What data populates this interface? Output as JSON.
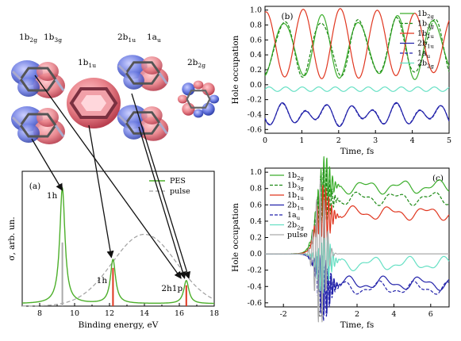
{
  "orbitals": {
    "labels": [
      {
        "main": "1b",
        "sub": "2g"
      },
      {
        "main": "1b",
        "sub": "3g"
      },
      {
        "main": "1b",
        "sub": "1u"
      },
      {
        "main": "2b",
        "sub": "1u"
      },
      {
        "main": "1a",
        "sub": "u"
      },
      {
        "main": "2b",
        "sub": "2g"
      }
    ]
  },
  "colors": {
    "green": "#3cae2c",
    "darkgreen": "#1e8a17",
    "red": "#e0361f",
    "blue": "#2222aa",
    "cyan": "#66e0c4",
    "gray": "#aaaaaa",
    "pes": "#4caf2a",
    "pulse": "#a0a0a0"
  },
  "panel_a": {
    "tag": "(a)",
    "xlabel": "Binding energy, eV",
    "ylabel": "σ, arb. un.",
    "xticks": [
      "8",
      "10",
      "12",
      "14",
      "16",
      "18"
    ],
    "legend": [
      {
        "name": "PES"
      },
      {
        "name": "pulse"
      }
    ],
    "peak_labels": [
      "1h",
      "1h",
      "2h1p"
    ]
  },
  "panel_b": {
    "tag": "(b)",
    "xlabel": "Time, fs",
    "ylabel": "Hole occupation",
    "xticks": [
      "0",
      "1",
      "2",
      "3",
      "4",
      "5"
    ],
    "yticks": [
      "1.0",
      "0.8",
      "0.6",
      "0.4",
      "0.2",
      "0.0",
      "-0.2",
      "-0.4",
      "-0.6"
    ],
    "legend": [
      {
        "main": "1b",
        "sub": "2g"
      },
      {
        "main": "1b",
        "sub": "3g"
      },
      {
        "main": "1b",
        "sub": "1u"
      },
      {
        "main": "2b",
        "sub": "1u"
      },
      {
        "main": "1a",
        "sub": "u"
      },
      {
        "main": "2b",
        "sub": "2g"
      }
    ]
  },
  "panel_c": {
    "tag": "(c)",
    "xlabel": "Time, fs",
    "ylabel": "Hole occupation",
    "xticks": [
      "-2",
      "0",
      "2",
      "4",
      "6"
    ],
    "yticks": [
      "1.0",
      "0.8",
      "0.6",
      "0.4",
      "0.2",
      "0.0",
      "-0.2",
      "-0.4",
      "-0.6"
    ],
    "legend": [
      {
        "main": "1b",
        "sub": "2g"
      },
      {
        "main": "1b",
        "sub": "3g"
      },
      {
        "main": "1b",
        "sub": "1u"
      },
      {
        "main": "2b",
        "sub": "1u"
      },
      {
        "main": "1a",
        "sub": "u"
      },
      {
        "main": "2b",
        "sub": "2g"
      },
      {
        "main": "pulse",
        "sub": ""
      }
    ]
  },
  "chart_data": [
    {
      "panel": "a",
      "type": "line",
      "xlim": [
        7,
        18
      ],
      "series": [
        {
          "name": "PES",
          "peaks": [
            {
              "x": 9.3,
              "height": 1.0
            },
            {
              "x": 12.2,
              "height": 0.38
            },
            {
              "x": 16.4,
              "height": 0.2
            }
          ]
        },
        {
          "name": "pulse",
          "center": 14.0,
          "height": 0.62
        }
      ],
      "sticks": [
        {
          "x": 9.3,
          "height": 0.55,
          "color": "gray"
        },
        {
          "x": 12.2,
          "height": 0.33,
          "color": "red"
        },
        {
          "x": 16.4,
          "height": 0.18,
          "color": "red"
        }
      ]
    },
    {
      "panel": "b",
      "type": "line",
      "xlim": [
        0,
        5
      ],
      "ylim": [
        -0.65,
        1.05
      ],
      "series": [
        {
          "name": "1b2g",
          "style": "solid",
          "color": "green"
        },
        {
          "name": "1b3g",
          "style": "dashed",
          "color": "green"
        },
        {
          "name": "1b1u",
          "style": "solid",
          "color": "red"
        },
        {
          "name": "2b1u",
          "style": "solid",
          "color": "blue"
        },
        {
          "name": "1au",
          "style": "dashed",
          "color": "blue"
        },
        {
          "name": "2b2g",
          "style": "solid",
          "color": "cyan"
        }
      ]
    },
    {
      "panel": "c",
      "type": "line",
      "xlim": [
        -3,
        7
      ],
      "ylim": [
        -0.65,
        1.05
      ],
      "series": [
        {
          "name": "1b2g",
          "style": "solid",
          "color": "green",
          "late_level": 0.82
        },
        {
          "name": "1b3g",
          "style": "dashed",
          "color": "green",
          "late_level": 0.68
        },
        {
          "name": "1b1u",
          "style": "solid",
          "color": "red",
          "late_level": 0.5
        },
        {
          "name": "2b1u",
          "style": "solid",
          "color": "blue",
          "late_level": -0.36
        },
        {
          "name": "1au",
          "style": "dashed",
          "color": "blue",
          "late_level": -0.42
        },
        {
          "name": "2b2g",
          "style": "solid",
          "color": "cyan",
          "late_level": -0.12
        },
        {
          "name": "pulse",
          "style": "solid",
          "color": "gray",
          "center": 0.0
        }
      ]
    }
  ]
}
